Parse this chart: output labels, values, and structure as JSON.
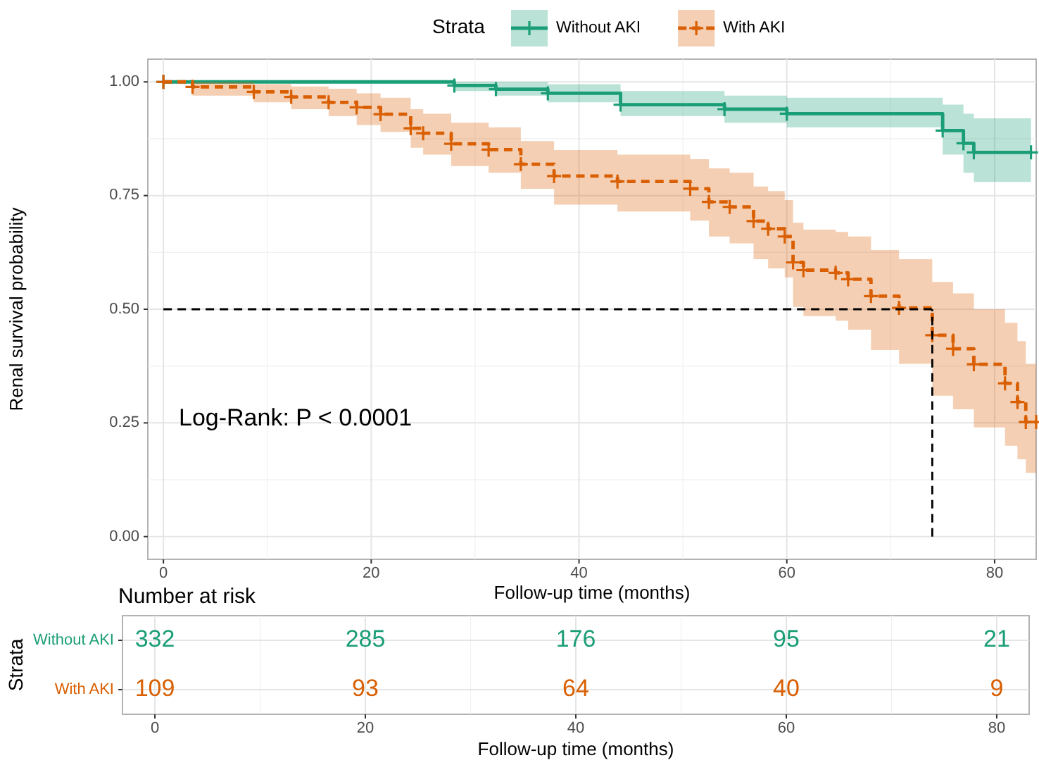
{
  "chart_data": [
    {
      "type": "step",
      "xlabel": "Follow-up time (months)",
      "ylabel": "Renal survival probability",
      "legend_title": "Strata",
      "legend": "top",
      "grid": true,
      "marker": "cross",
      "xlim": [
        -1.5,
        84
      ],
      "xticks": [
        0,
        20,
        40,
        60,
        80
      ],
      "ylim": [
        -0.05,
        1.05
      ],
      "yticks": [
        {
          "value": 0,
          "label": "0.00"
        },
        {
          "value": 0.25,
          "label": "0.25"
        },
        {
          "value": 0.5,
          "label": "0.50"
        },
        {
          "value": 0.75,
          "label": "0.75"
        },
        {
          "value": 1,
          "label": "1.00"
        }
      ],
      "annotations": [
        "Log-Rank: P < 0.0001"
      ],
      "ref_lines": [
        {
          "axis": "y",
          "value": 0.5,
          "line_style": "dashed",
          "color": "#000000"
        },
        {
          "axis": "x",
          "value": 74,
          "line_style": "dashed",
          "color": "#000000"
        }
      ],
      "series": [
        {
          "name": "Without AKI",
          "color": "#1b9e77",
          "line_style": "solid",
          "x": [
            0,
            28,
            32,
            37,
            44,
            54,
            60,
            75,
            77,
            78,
            83.5
          ],
          "values": [
            1,
            0.992,
            0.984,
            0.975,
            0.95,
            0.94,
            0.93,
            0.893,
            0.865,
            0.845,
            0.845
          ],
          "lower": [
            1,
            0.98,
            0.97,
            0.955,
            0.925,
            0.91,
            0.9,
            0.84,
            0.8,
            0.78,
            0.78
          ],
          "upper": [
            1,
            1,
            1,
            0.995,
            0.98,
            0.97,
            0.965,
            0.95,
            0.93,
            0.92,
            0.92
          ]
        },
        {
          "name": "With AKI",
          "color": "#d95f02",
          "line_style": "dashed",
          "x": [
            0,
            2.8,
            8.7,
            12.3,
            15.9,
            18.6,
            20.9,
            23.8,
            25,
            27.7,
            31.3,
            34.4,
            37.6,
            43.7,
            50.7,
            52.5,
            54.5,
            56.8,
            58.2,
            59.8,
            60.6,
            61.6,
            64.7,
            65.9,
            68.1,
            70.8,
            74,
            76,
            78,
            81,
            82.2,
            83,
            84
          ],
          "values": [
            1,
            0.989,
            0.978,
            0.967,
            0.955,
            0.944,
            0.929,
            0.898,
            0.887,
            0.864,
            0.851,
            0.819,
            0.793,
            0.781,
            0.765,
            0.736,
            0.725,
            0.694,
            0.677,
            0.66,
            0.603,
            0.586,
            0.58,
            0.566,
            0.529,
            0.503,
            0.443,
            0.413,
            0.379,
            0.337,
            0.296,
            0.252,
            0.252
          ],
          "lower": [
            1,
            0.97,
            0.955,
            0.94,
            0.925,
            0.905,
            0.89,
            0.855,
            0.84,
            0.815,
            0.8,
            0.765,
            0.73,
            0.715,
            0.695,
            0.66,
            0.645,
            0.61,
            0.59,
            0.57,
            0.505,
            0.485,
            0.475,
            0.455,
            0.41,
            0.38,
            0.31,
            0.28,
            0.24,
            0.2,
            0.17,
            0.14,
            0.14
          ],
          "upper": [
            1,
            1,
            0.995,
            0.99,
            0.985,
            0.975,
            0.965,
            0.94,
            0.93,
            0.91,
            0.9,
            0.87,
            0.85,
            0.84,
            0.83,
            0.81,
            0.8,
            0.77,
            0.76,
            0.74,
            0.69,
            0.675,
            0.67,
            0.66,
            0.63,
            0.61,
            0.56,
            0.535,
            0.5,
            0.47,
            0.43,
            0.38,
            0.38
          ]
        }
      ]
    },
    {
      "type": "heatmap",
      "title": "Number at risk",
      "xlabel": "Follow-up time (months)",
      "ylabel": "Strata",
      "grid": true,
      "categories": [
        "0",
        "20",
        "40",
        "60",
        "80"
      ],
      "y_categories": [
        "Without AKI",
        "With AKI"
      ],
      "colors": [
        "#1b9e77",
        "#d95f02"
      ],
      "cells": [
        [
          332,
          285,
          176,
          95,
          21
        ],
        [
          109,
          93,
          64,
          40,
          9
        ]
      ],
      "data_labels": true
    }
  ]
}
